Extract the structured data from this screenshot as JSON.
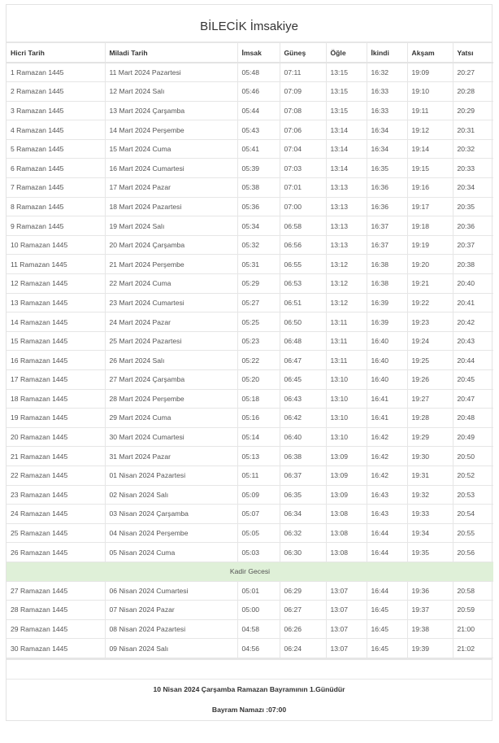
{
  "title": "BİLECİK İmsakiye",
  "headers": [
    "Hicri Tarih",
    "Miladi Tarih",
    "İmsak",
    "Güneş",
    "Öğle",
    "İkindi",
    "Akşam",
    "Yatsı"
  ],
  "rows_before": [
    [
      "1 Ramazan 1445",
      "11 Mart 2024 Pazartesi",
      "05:48",
      "07:11",
      "13:15",
      "16:32",
      "19:09",
      "20:27"
    ],
    [
      "2 Ramazan 1445",
      "12 Mart 2024 Salı",
      "05:46",
      "07:09",
      "13:15",
      "16:33",
      "19:10",
      "20:28"
    ],
    [
      "3 Ramazan 1445",
      "13 Mart 2024 Çarşamba",
      "05:44",
      "07:08",
      "13:15",
      "16:33",
      "19:11",
      "20:29"
    ],
    [
      "4 Ramazan 1445",
      "14 Mart 2024 Perşembe",
      "05:43",
      "07:06",
      "13:14",
      "16:34",
      "19:12",
      "20:31"
    ],
    [
      "5 Ramazan 1445",
      "15 Mart 2024 Cuma",
      "05:41",
      "07:04",
      "13:14",
      "16:34",
      "19:14",
      "20:32"
    ],
    [
      "6 Ramazan 1445",
      "16 Mart 2024 Cumartesi",
      "05:39",
      "07:03",
      "13:14",
      "16:35",
      "19:15",
      "20:33"
    ],
    [
      "7 Ramazan 1445",
      "17 Mart 2024 Pazar",
      "05:38",
      "07:01",
      "13:13",
      "16:36",
      "19:16",
      "20:34"
    ],
    [
      "8 Ramazan 1445",
      "18 Mart 2024 Pazartesi",
      "05:36",
      "07:00",
      "13:13",
      "16:36",
      "19:17",
      "20:35"
    ],
    [
      "9 Ramazan 1445",
      "19 Mart 2024 Salı",
      "05:34",
      "06:58",
      "13:13",
      "16:37",
      "19:18",
      "20:36"
    ],
    [
      "10 Ramazan 1445",
      "20 Mart 2024 Çarşamba",
      "05:32",
      "06:56",
      "13:13",
      "16:37",
      "19:19",
      "20:37"
    ],
    [
      "11 Ramazan 1445",
      "21 Mart 2024 Perşembe",
      "05:31",
      "06:55",
      "13:12",
      "16:38",
      "19:20",
      "20:38"
    ],
    [
      "12 Ramazan 1445",
      "22 Mart 2024 Cuma",
      "05:29",
      "06:53",
      "13:12",
      "16:38",
      "19:21",
      "20:40"
    ],
    [
      "13 Ramazan 1445",
      "23 Mart 2024 Cumartesi",
      "05:27",
      "06:51",
      "13:12",
      "16:39",
      "19:22",
      "20:41"
    ],
    [
      "14 Ramazan 1445",
      "24 Mart 2024 Pazar",
      "05:25",
      "06:50",
      "13:11",
      "16:39",
      "19:23",
      "20:42"
    ],
    [
      "15 Ramazan 1445",
      "25 Mart 2024 Pazartesi",
      "05:23",
      "06:48",
      "13:11",
      "16:40",
      "19:24",
      "20:43"
    ],
    [
      "16 Ramazan 1445",
      "26 Mart 2024 Salı",
      "05:22",
      "06:47",
      "13:11",
      "16:40",
      "19:25",
      "20:44"
    ],
    [
      "17 Ramazan 1445",
      "27 Mart 2024 Çarşamba",
      "05:20",
      "06:45",
      "13:10",
      "16:40",
      "19:26",
      "20:45"
    ],
    [
      "18 Ramazan 1445",
      "28 Mart 2024 Perşembe",
      "05:18",
      "06:43",
      "13:10",
      "16:41",
      "19:27",
      "20:47"
    ],
    [
      "19 Ramazan 1445",
      "29 Mart 2024 Cuma",
      "05:16",
      "06:42",
      "13:10",
      "16:41",
      "19:28",
      "20:48"
    ],
    [
      "20 Ramazan 1445",
      "30 Mart 2024 Cumartesi",
      "05:14",
      "06:40",
      "13:10",
      "16:42",
      "19:29",
      "20:49"
    ],
    [
      "21 Ramazan 1445",
      "31 Mart 2024 Pazar",
      "05:13",
      "06:38",
      "13:09",
      "16:42",
      "19:30",
      "20:50"
    ],
    [
      "22 Ramazan 1445",
      "01 Nisan 2024 Pazartesi",
      "05:11",
      "06:37",
      "13:09",
      "16:42",
      "19:31",
      "20:52"
    ],
    [
      "23 Ramazan 1445",
      "02 Nisan 2024 Salı",
      "05:09",
      "06:35",
      "13:09",
      "16:43",
      "19:32",
      "20:53"
    ],
    [
      "24 Ramazan 1445",
      "03 Nisan 2024 Çarşamba",
      "05:07",
      "06:34",
      "13:08",
      "16:43",
      "19:33",
      "20:54"
    ],
    [
      "25 Ramazan 1445",
      "04 Nisan 2024 Perşembe",
      "05:05",
      "06:32",
      "13:08",
      "16:44",
      "19:34",
      "20:55"
    ],
    [
      "26 Ramazan 1445",
      "05 Nisan 2024 Cuma",
      "05:03",
      "06:30",
      "13:08",
      "16:44",
      "19:35",
      "20:56"
    ]
  ],
  "kadir_label": "Kadir Gecesi",
  "kadir_color": "#dff0d8",
  "rows_after": [
    [
      "27 Ramazan 1445",
      "06 Nisan 2024 Cumartesi",
      "05:01",
      "06:29",
      "13:07",
      "16:44",
      "19:36",
      "20:58"
    ],
    [
      "28 Ramazan 1445",
      "07 Nisan 2024 Pazar",
      "05:00",
      "06:27",
      "13:07",
      "16:45",
      "19:37",
      "20:59"
    ],
    [
      "29 Ramazan 1445",
      "08 Nisan 2024 Pazartesi",
      "04:58",
      "06:26",
      "13:07",
      "16:45",
      "19:38",
      "21:00"
    ],
    [
      "30 Ramazan 1445",
      "09 Nisan 2024 Salı",
      "04:56",
      "06:24",
      "13:07",
      "16:45",
      "19:39",
      "21:02"
    ]
  ],
  "footer": {
    "bayram_text": "10 Nisan 2024 Çarşamba Ramazan Bayramının 1.Günüdür",
    "namaz_text": "Bayram Namazı :07:00"
  }
}
